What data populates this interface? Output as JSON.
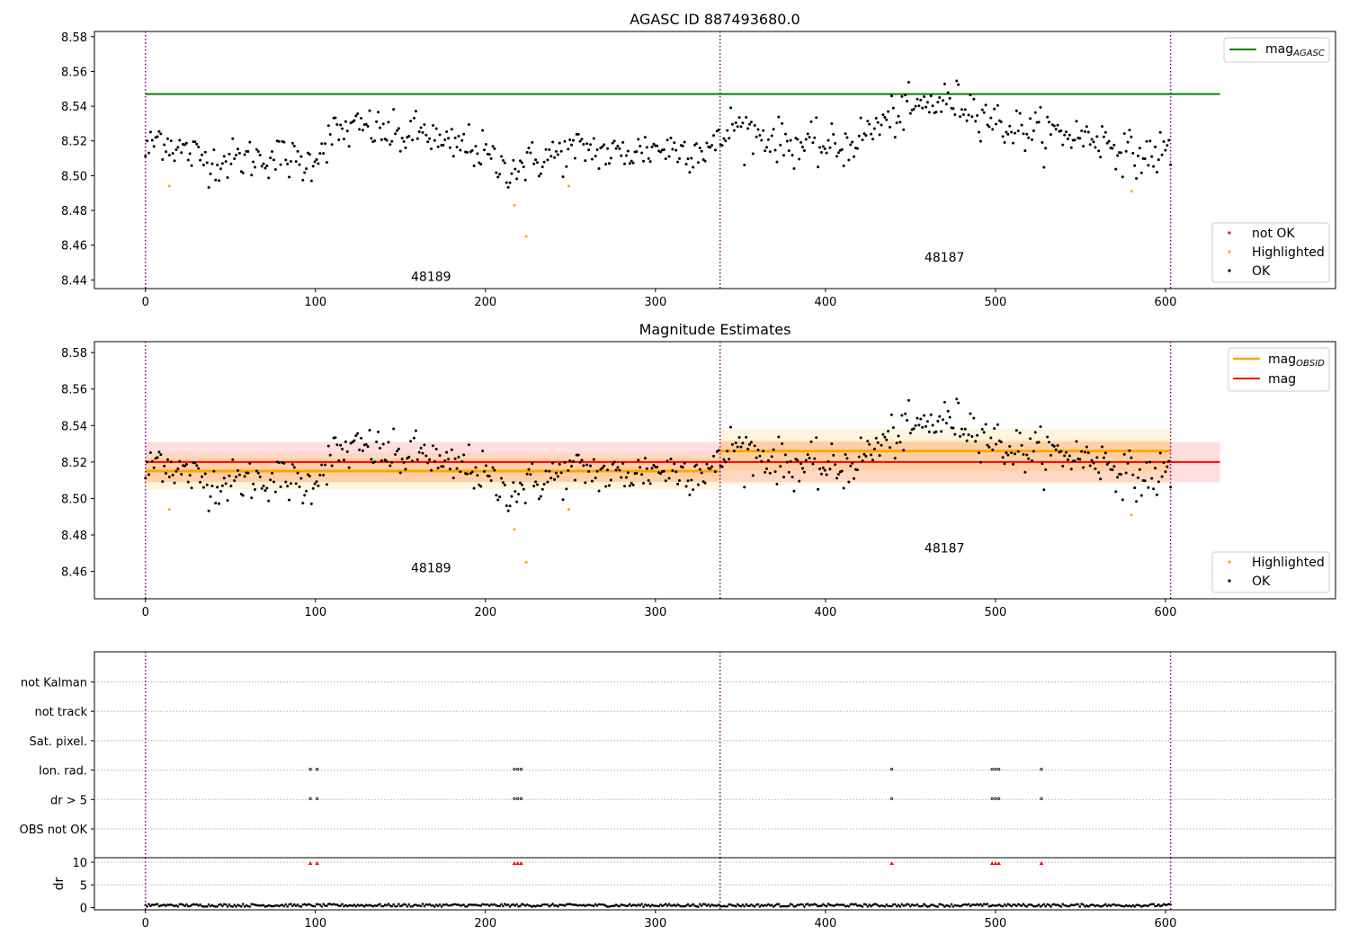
{
  "chart_data": [
    {
      "type": "scatter",
      "title": "AGASC ID 887493680.0",
      "xlabel": "",
      "ylabel": "",
      "xlim": [
        -30,
        700
      ],
      "ylim": [
        8.435,
        8.583
      ],
      "x_ticks": [
        "0",
        "100",
        "200",
        "300",
        "400",
        "500",
        "600"
      ],
      "y_ticks": [
        "8.44",
        "8.46",
        "8.48",
        "8.50",
        "8.52",
        "8.54",
        "8.56",
        "8.58"
      ],
      "grid": false,
      "obsid_boundaries": [
        0,
        338,
        603
      ],
      "obsid_labels": [
        {
          "text": "48189",
          "x": 168,
          "y": 8.4395
        },
        {
          "text": "48187",
          "x": 470,
          "y": 8.4505
        }
      ],
      "reference_lines": [
        {
          "name": "mag_AGASC",
          "y": 8.547,
          "x0": 0,
          "x1": 632,
          "color": "#008000"
        }
      ],
      "series": [
        {
          "name": "not OK",
          "color": "#ff0000",
          "points": []
        },
        {
          "name": "Highlighted",
          "color": "#ffa500",
          "points": [
            [
              14,
              8.494
            ],
            [
              217,
              8.483
            ],
            [
              224,
              8.465
            ],
            [
              249,
              8.494
            ],
            [
              580,
              8.491
            ]
          ]
        },
        {
          "name": "OK",
          "color": "#000000",
          "trend": [
            [
              0,
              8.513
            ],
            [
              8,
              8.523
            ],
            [
              20,
              8.515
            ],
            [
              40,
              8.508
            ],
            [
              60,
              8.51
            ],
            [
              80,
              8.511
            ],
            [
              95,
              8.506
            ],
            [
              110,
              8.524
            ],
            [
              130,
              8.528
            ],
            [
              150,
              8.522
            ],
            [
              165,
              8.526
            ],
            [
              175,
              8.516
            ],
            [
              190,
              8.518
            ],
            [
              200,
              8.512
            ],
            [
              210,
              8.504
            ],
            [
              225,
              8.507
            ],
            [
              240,
              8.512
            ],
            [
              260,
              8.516
            ],
            [
              275,
              8.512
            ],
            [
              300,
              8.516
            ],
            [
              320,
              8.515
            ],
            [
              337,
              8.517
            ],
            [
              345,
              8.53
            ],
            [
              360,
              8.524
            ],
            [
              380,
              8.518
            ],
            [
              395,
              8.517
            ],
            [
              410,
              8.516
            ],
            [
              425,
              8.525
            ],
            [
              440,
              8.534
            ],
            [
              460,
              8.541
            ],
            [
              475,
              8.543
            ],
            [
              490,
              8.538
            ],
            [
              505,
              8.528
            ],
            [
              520,
              8.526
            ],
            [
              540,
              8.524
            ],
            [
              560,
              8.522
            ],
            [
              575,
              8.515
            ],
            [
              585,
              8.51
            ],
            [
              603,
              8.515
            ]
          ],
          "scatter_sd": 0.006,
          "n_points": 600
        }
      ],
      "legends": [
        {
          "position": "upper-right",
          "entries": [
            "mag_AGASC"
          ]
        },
        {
          "position": "lower-right",
          "entries": [
            "not OK",
            "Highlighted",
            "OK"
          ]
        }
      ]
    },
    {
      "type": "scatter",
      "title": "Magnitude Estimates",
      "xlabel": "",
      "ylabel": "",
      "xlim": [
        -30,
        700
      ],
      "ylim": [
        8.445,
        8.586
      ],
      "x_ticks": [
        "0",
        "100",
        "200",
        "300",
        "400",
        "500",
        "600"
      ],
      "y_ticks": [
        "8.46",
        "8.48",
        "8.50",
        "8.52",
        "8.54",
        "8.56",
        "8.58"
      ],
      "grid": false,
      "obsid_labels": [
        {
          "text": "48189",
          "x": 168,
          "y": 8.4595
        },
        {
          "text": "48187",
          "x": 470,
          "y": 8.4705
        }
      ],
      "mag_obsid": [
        {
          "x0": 0,
          "x1": 338,
          "value": 8.515,
          "band1": [
            8.509,
            8.522
          ],
          "band2": [
            8.505,
            8.525
          ]
        },
        {
          "x0": 338,
          "x1": 603,
          "value": 8.526,
          "band1": [
            8.515,
            8.532
          ],
          "band2": [
            8.508,
            8.538
          ]
        }
      ],
      "mag": {
        "value": 8.52,
        "band": [
          8.509,
          8.531
        ],
        "x0": 0,
        "x1": 632
      },
      "legends": [
        {
          "position": "upper-right",
          "entries": [
            "mag_OBSID",
            "mag"
          ]
        },
        {
          "position": "lower-right",
          "entries": [
            "Highlighted",
            "OK"
          ]
        }
      ]
    },
    {
      "type": "scatter",
      "title": "",
      "y_categories": [
        "not Kalman",
        "not track",
        "Sat. pixel.",
        "Ion. rad.",
        "dr > 5",
        "OBS not OK"
      ],
      "flagged_x": {
        "Ion. rad.": [
          97,
          101,
          217,
          219,
          221,
          439,
          498,
          500,
          502,
          527
        ],
        "dr > 5": [
          97,
          101,
          217,
          219,
          221,
          439,
          498,
          500,
          502,
          527
        ]
      }
    },
    {
      "type": "scatter",
      "title": "",
      "ylabel": "dr",
      "ylim": [
        -0.5,
        11
      ],
      "y_ticks": [
        "0",
        "5",
        "10"
      ],
      "x_ticks": [
        "0",
        "100",
        "200",
        "300",
        "400",
        "500",
        "600"
      ],
      "clipped_x": [
        97,
        101,
        217,
        219,
        221,
        439,
        498,
        500,
        502,
        527
      ],
      "dr_typical": [
        0.2,
        1.2
      ]
    }
  ],
  "legend_labels": {
    "mag_agasc_base": "mag",
    "mag_agasc_sub": "AGASC",
    "mag_obsid_base": "mag",
    "mag_obsid_sub": "OBSID",
    "mag": "mag",
    "not_ok": "not OK",
    "highlighted": "Highlighted",
    "ok": "OK"
  },
  "colors": {
    "agasc": "#008000",
    "obsid": "#ffa500",
    "mag": "#ff0000",
    "boundary": "#800080",
    "ok": "#000000"
  }
}
